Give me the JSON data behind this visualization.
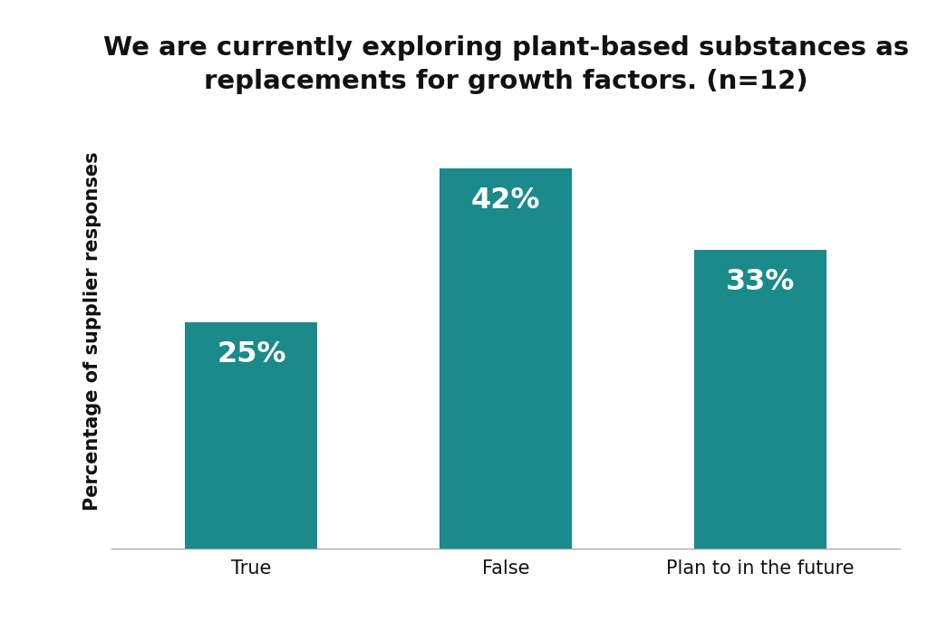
{
  "title": "We are currently exploring plant-based substances as\nreplacements for growth factors. (n=12)",
  "categories": [
    "True",
    "False",
    "Plan to in the future"
  ],
  "values": [
    25,
    42,
    33
  ],
  "labels": [
    "25%",
    "42%",
    "33%"
  ],
  "bar_color": "#1a8a8a",
  "label_color": "#ffffff",
  "ylabel": "Percentage of supplier responses",
  "background_color": "#ffffff",
  "ylim": [
    0,
    48
  ],
  "title_fontsize": 21,
  "label_fontsize": 23,
  "ylabel_fontsize": 15,
  "xtick_fontsize": 15,
  "bar_width": 0.52
}
